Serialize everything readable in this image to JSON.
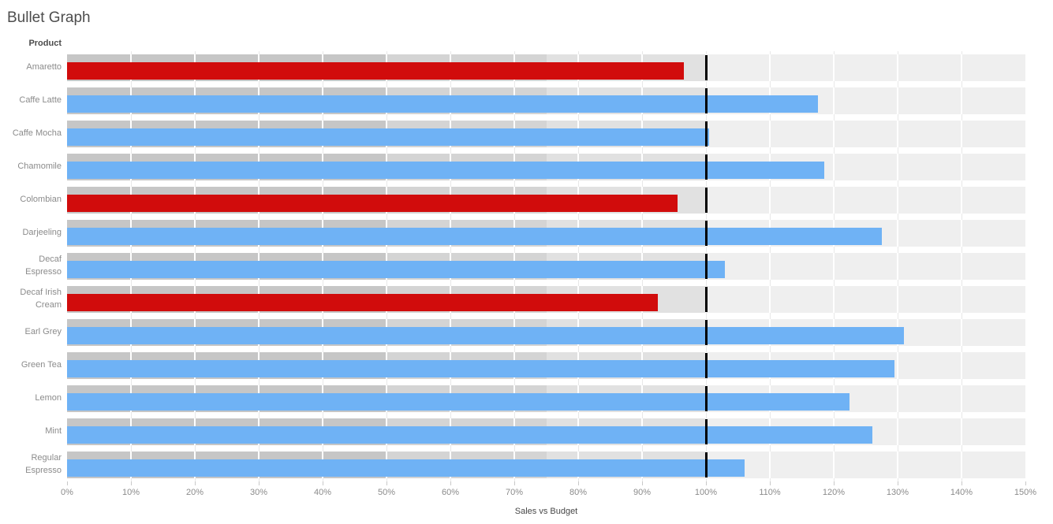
{
  "title": "Bullet Graph",
  "row_header": "Product",
  "axis": {
    "title": "Sales vs Budget",
    "tick_labels": [
      "0%",
      "10%",
      "20%",
      "30%",
      "40%",
      "50%",
      "60%",
      "70%",
      "80%",
      "90%",
      "100%",
      "110%",
      "120%",
      "130%",
      "140%",
      "150%"
    ],
    "min": 0,
    "max": 150,
    "tick_step": 10
  },
  "colors": {
    "below": "#d10c0c",
    "above": "#6fb2f5",
    "reference_line": "#000000",
    "band_colors": [
      "#c6c6c6",
      "#d4d4d4",
      "#e1e1e1",
      "#efefef"
    ],
    "gridline": "#ffffff",
    "text_gray": "#8b8b8b",
    "text_dark": "#4d4d4d"
  },
  "chart_data": {
    "type": "bar",
    "variant": "bullet-graph",
    "title": "Bullet Graph",
    "xlabel": "Sales vs Budget",
    "ylabel": "Product",
    "xlim": [
      0,
      150
    ],
    "x_unit": "percent",
    "x_tick_step": 10,
    "grid": "white-lines-on-bands",
    "reference_line": 100,
    "qualitative_bands": [
      {
        "from": 0,
        "to": 50
      },
      {
        "from": 50,
        "to": 75
      },
      {
        "from": 75,
        "to": 100
      },
      {
        "from": 100,
        "to": 150
      }
    ],
    "categories": [
      "Amaretto",
      "Caffe Latte",
      "Caffe Mocha",
      "Chamomile",
      "Colombian",
      "Darjeeling",
      "Decaf Espresso",
      "Decaf Irish Cream",
      "Earl Grey",
      "Green Tea",
      "Lemon",
      "Mint",
      "Regular Espresso"
    ],
    "values": [
      96.5,
      117.5,
      100.5,
      118.5,
      95.5,
      127.5,
      103,
      92.5,
      131,
      129.5,
      122.5,
      126,
      106
    ],
    "status": [
      "below",
      "above",
      "above",
      "above",
      "below",
      "above",
      "above",
      "below",
      "above",
      "above",
      "above",
      "above",
      "above"
    ],
    "legend_meaning": {
      "below": "sales below 100% of budget (red)",
      "above": "sales at or above 100% of budget (blue)"
    }
  }
}
